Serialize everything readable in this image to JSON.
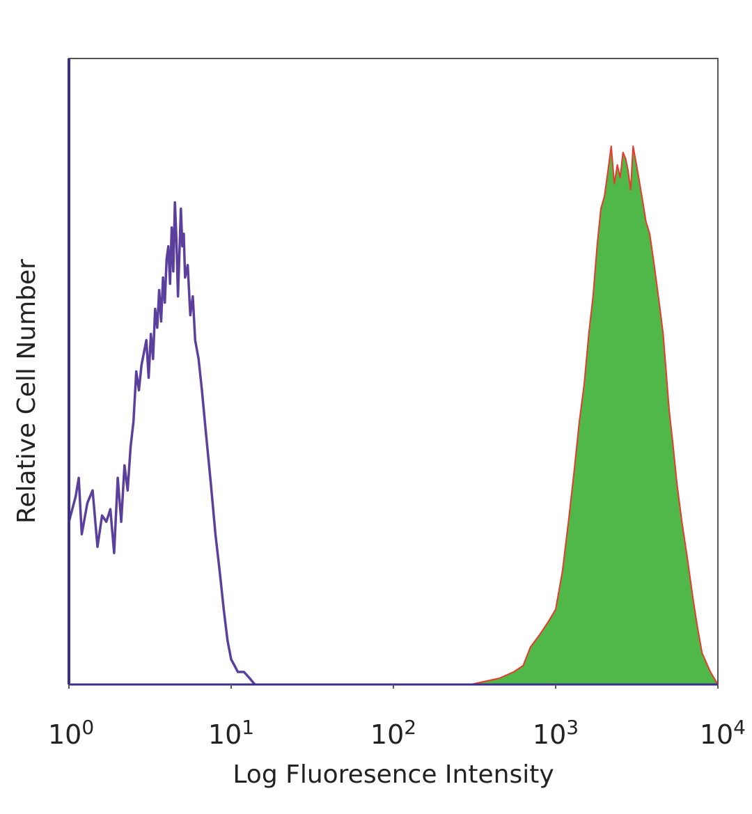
{
  "chart_data": {
    "type": "area",
    "title": "",
    "xlabel": "Log Fluoresence Intensity",
    "ylabel": "Relative Cell Number",
    "x_scale": "log",
    "xlim": [
      1,
      10000
    ],
    "ylim": [
      0,
      100
    ],
    "grid": false,
    "legend": "none",
    "x_ticks": [
      {
        "base": "10",
        "exp": "0",
        "value": 1
      },
      {
        "base": "10",
        "exp": "1",
        "value": 10
      },
      {
        "base": "10",
        "exp": "2",
        "value": 100
      },
      {
        "base": "10",
        "exp": "3",
        "value": 1000
      },
      {
        "base": "10",
        "exp": "4",
        "value": 10000
      }
    ],
    "colors": {
      "control_line": "#5b3f9c",
      "stained_fill": "#4fb848",
      "stained_edge": "#e8392c",
      "axis_left": "#3a2f8f",
      "frame": "#555555"
    },
    "series": [
      {
        "style": "line",
        "x": [
          1.0,
          1.1,
          1.15,
          1.2,
          1.3,
          1.4,
          1.5,
          1.6,
          1.7,
          1.8,
          1.9,
          2.0,
          2.1,
          2.2,
          2.3,
          2.4,
          2.5,
          2.6,
          2.7,
          2.8,
          2.9,
          3.0,
          3.1,
          3.2,
          3.3,
          3.4,
          3.5,
          3.6,
          3.7,
          3.8,
          3.9,
          4.0,
          4.1,
          4.2,
          4.3,
          4.4,
          4.5,
          4.6,
          4.7,
          4.8,
          4.9,
          5.0,
          5.1,
          5.2,
          5.4,
          5.6,
          5.8,
          6.0,
          6.3,
          6.6,
          7.0,
          7.5,
          8.0,
          8.5,
          9.0,
          9.5,
          10.0,
          10.5,
          11.0,
          12.0,
          13.0,
          14.0
        ],
        "y": [
          26,
          30,
          33,
          24,
          29,
          31,
          22,
          27,
          26,
          28,
          21,
          33,
          26,
          35,
          31,
          38,
          42,
          50,
          47,
          51,
          53,
          55,
          49,
          56,
          52,
          60,
          57,
          63,
          58,
          65,
          61,
          68,
          70,
          64,
          73,
          66,
          77,
          71,
          62,
          69,
          76,
          70,
          72,
          65,
          67,
          59,
          62,
          55,
          52,
          47,
          40,
          32,
          24,
          18,
          12,
          7,
          4,
          3,
          2,
          2,
          1,
          0
        ]
      },
      {
        "style": "filled",
        "x": [
          300,
          450,
          550,
          630,
          700,
          800,
          900,
          1000,
          1100,
          1200,
          1300,
          1400,
          1500,
          1600,
          1700,
          1800,
          1900,
          2000,
          2100,
          2200,
          2300,
          2400,
          2500,
          2600,
          2700,
          2800,
          2900,
          3000,
          3100,
          3200,
          3300,
          3400,
          3500,
          3600,
          3800,
          4000,
          4200,
          4400,
          4600,
          4800,
          5000,
          5300,
          5600,
          6000,
          6500,
          7000,
          7500,
          8000,
          9000,
          10000
        ],
        "y": [
          0,
          1,
          2,
          3,
          6,
          8,
          10,
          12,
          18,
          26,
          34,
          42,
          48,
          56,
          62,
          70,
          76,
          78,
          82,
          86,
          80,
          83,
          81,
          85,
          84,
          82,
          79,
          86,
          84,
          82,
          80,
          78,
          76,
          74,
          72,
          68,
          64,
          60,
          56,
          50,
          44,
          38,
          32,
          26,
          20,
          14,
          9,
          5,
          2,
          0
        ]
      }
    ]
  }
}
